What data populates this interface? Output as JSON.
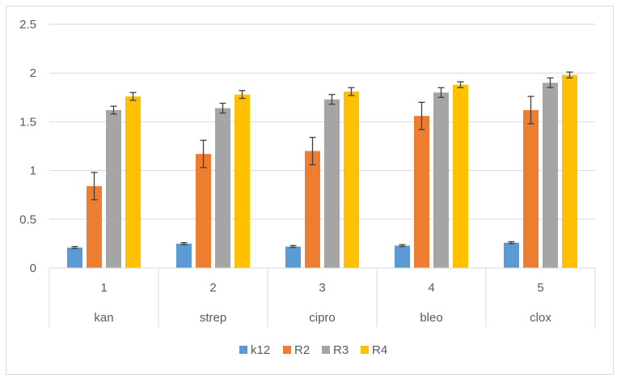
{
  "chart_data": {
    "type": "bar",
    "title": "",
    "xlabel": "",
    "ylabel": "",
    "ylim": [
      0,
      2.5
    ],
    "yticks": [
      "0",
      "0.5",
      "1",
      "1.5",
      "2",
      "2.5"
    ],
    "categories": [
      {
        "number": "1",
        "name": "kan"
      },
      {
        "number": "2",
        "name": "strep"
      },
      {
        "number": "3",
        "name": "cipro"
      },
      {
        "number": "4",
        "name": "bleo"
      },
      {
        "number": "5",
        "name": "clox"
      }
    ],
    "series": [
      {
        "name": "k12",
        "color": "#5b9bd5",
        "values": [
          0.21,
          0.25,
          0.22,
          0.23,
          0.26
        ],
        "errors": [
          0.01,
          0.01,
          0.01,
          0.01,
          0.01
        ]
      },
      {
        "name": "R2",
        "color": "#ed7d31",
        "values": [
          0.84,
          1.17,
          1.2,
          1.56,
          1.62
        ],
        "errors": [
          0.14,
          0.14,
          0.14,
          0.14,
          0.14
        ]
      },
      {
        "name": "R3",
        "color": "#a5a5a5",
        "values": [
          1.62,
          1.64,
          1.73,
          1.8,
          1.9
        ],
        "errors": [
          0.04,
          0.05,
          0.05,
          0.05,
          0.05
        ]
      },
      {
        "name": "R4",
        "color": "#ffc000",
        "values": [
          1.76,
          1.78,
          1.81,
          1.88,
          1.98
        ],
        "errors": [
          0.04,
          0.04,
          0.04,
          0.03,
          0.03
        ]
      }
    ],
    "grid": true,
    "legend_position": "bottom"
  }
}
